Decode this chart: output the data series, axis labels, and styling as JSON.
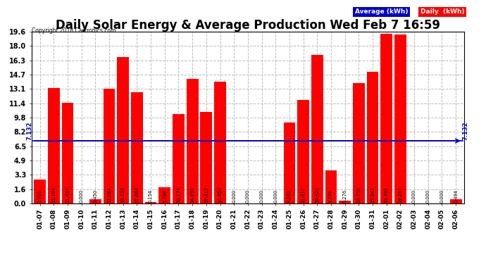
{
  "title": "Daily Solar Energy & Average Production Wed Feb 7 16:59",
  "copyright": "Copyright 2018 Cartronics.com",
  "categories": [
    "01-07",
    "01-08",
    "01-09",
    "01-10",
    "01-11",
    "01-12",
    "01-13",
    "01-14",
    "01-15",
    "01-16",
    "01-17",
    "01-18",
    "01-19",
    "01-20",
    "01-21",
    "01-22",
    "01-23",
    "01-24",
    "01-25",
    "01-26",
    "01-27",
    "01-28",
    "01-29",
    "01-30",
    "01-31",
    "02-01",
    "02-02",
    "02-03",
    "02-04",
    "02-05",
    "02-06"
  ],
  "values": [
    2.7,
    13.184,
    11.494,
    0.0,
    0.45,
    13.084,
    16.728,
    12.664,
    0.154,
    1.796,
    10.174,
    14.238,
    10.412,
    13.858,
    0.0,
    0.0,
    0.0,
    0.0,
    9.24,
    11.812,
    16.92,
    3.776,
    0.276,
    13.756,
    15.042,
    19.392,
    19.252,
    0.0,
    0.0,
    0.0,
    0.494
  ],
  "average": 7.132,
  "ylim": [
    0.0,
    19.6
  ],
  "yticks": [
    0.0,
    1.6,
    3.3,
    4.9,
    6.5,
    8.2,
    9.8,
    11.4,
    13.1,
    14.7,
    16.3,
    18.0,
    19.6
  ],
  "bar_color": "#ff0000",
  "avg_line_color": "#0000cc",
  "bg_color": "#ffffff",
  "plot_bg_color": "#ffffff",
  "grid_color": "#bbbbbb",
  "avg_label": "7.132",
  "legend_avg_bg": "#0000cc",
  "legend_daily_bg": "#ff0000",
  "legend_avg_text": "Average (kWh)",
  "legend_daily_text": "Daily  (kWh)",
  "title_fontsize": 12,
  "tick_fontsize": 7,
  "bar_label_fontsize": 4.8,
  "avg_label_fontsize": 6
}
